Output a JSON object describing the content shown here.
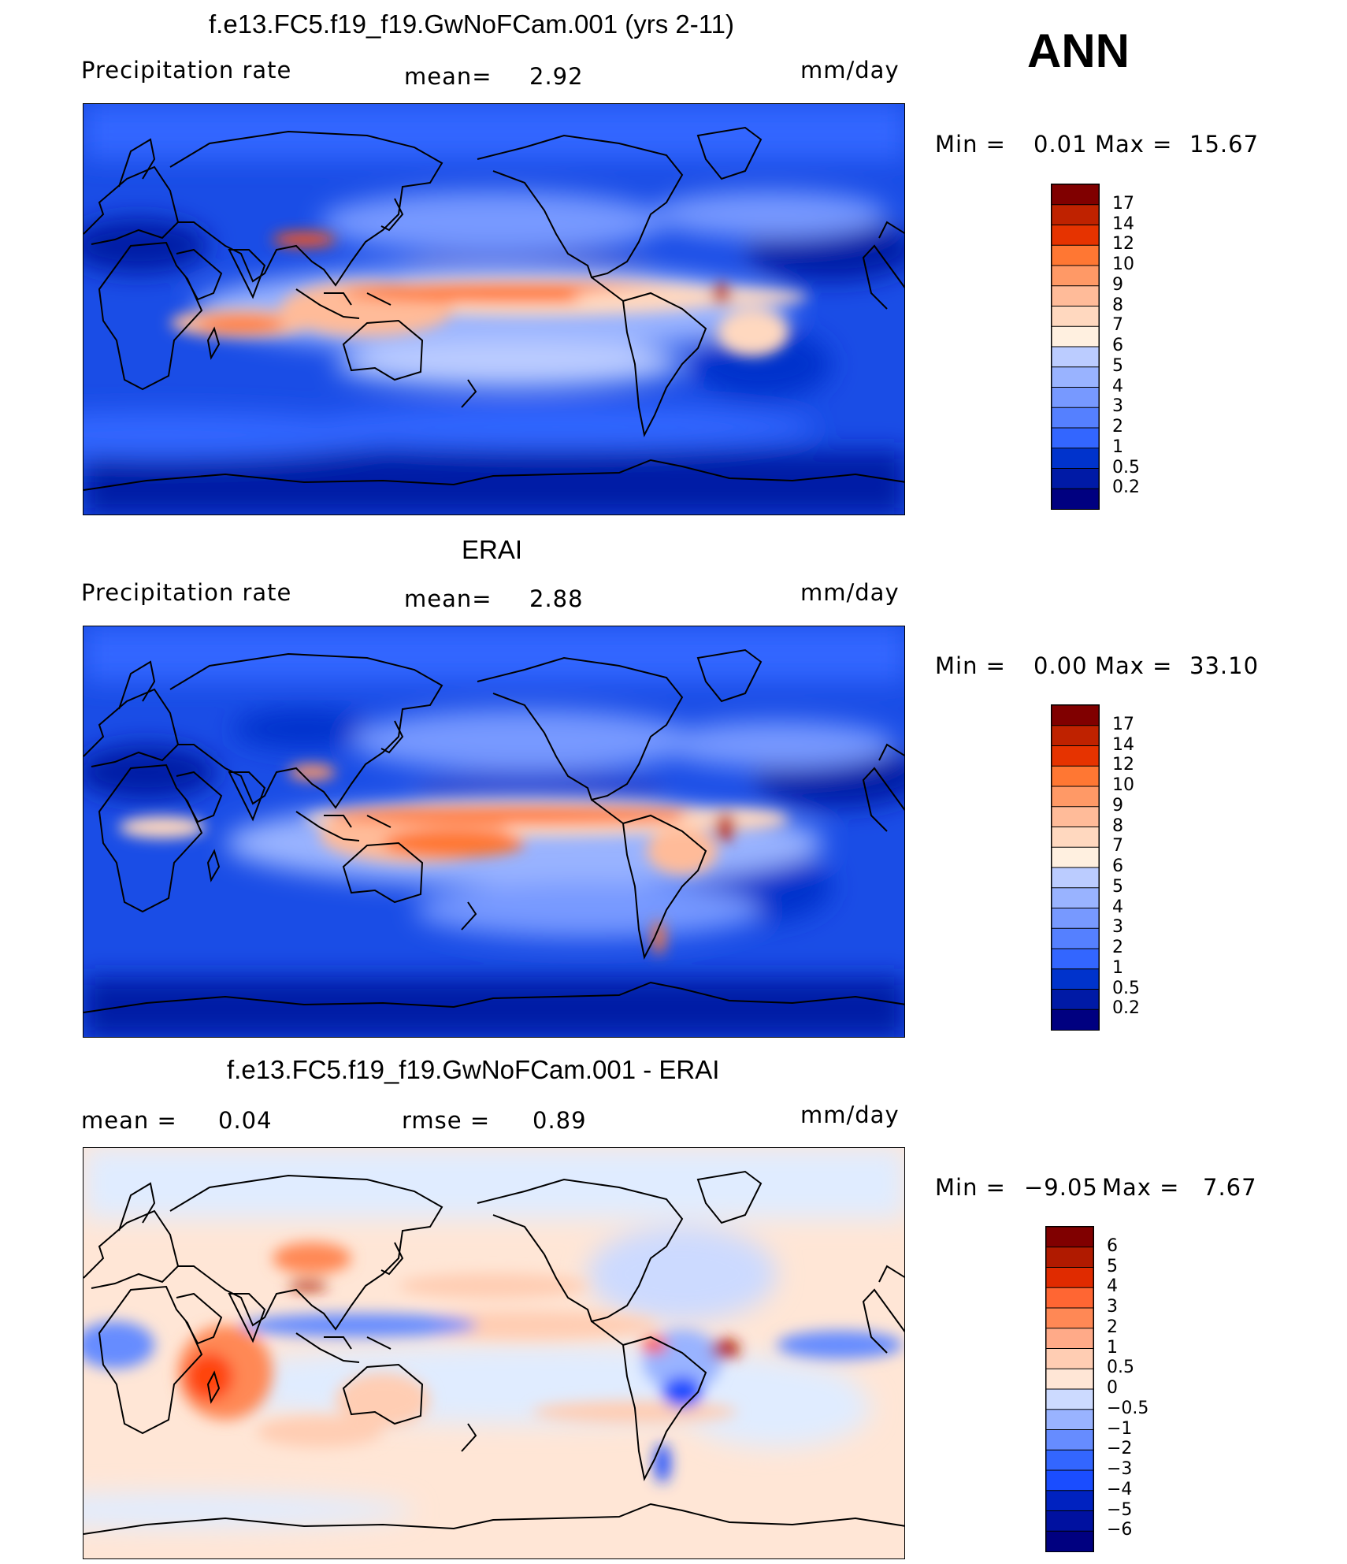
{
  "season": "ANN",
  "colors": {
    "abs_scale": [
      "#000080",
      "#001aa6",
      "#0033cc",
      "#1a4de6",
      "#3366ff",
      "#5580ff",
      "#7799ff",
      "#99b3ff",
      "#bbccff",
      "#dde6ff",
      "#fff0e0",
      "#ffd8bf",
      "#ffbb99",
      "#ff9966",
      "#ff7733",
      "#ff5511",
      "#e63300",
      "#bf2200",
      "#800000"
    ],
    "diff_scale": [
      "#000080",
      "#0011a0",
      "#0022c0",
      "#0033e0",
      "#1a4dff",
      "#3366ff",
      "#668cff",
      "#99b3ff",
      "#ccdaff",
      "#e0ecff",
      "#ffe6d6",
      "#ffcdb3",
      "#ffaa88",
      "#ff8855",
      "#ff6633",
      "#ff4411",
      "#e02b00",
      "#b01a00",
      "#800000"
    ]
  },
  "panels": [
    {
      "title": "f.e13.FC5.f19_f19.GwNoFCam.001 (yrs 2-11)",
      "left_label": "Precipitation rate",
      "mid_label": "mean=",
      "mid_value": "2.92",
      "units": "mm/day",
      "min_label": "Min =",
      "min_value": "0.01",
      "max_label": "Max =",
      "max_value": "15.67",
      "levels": [
        "17",
        "14",
        "12",
        "10",
        "9",
        "8",
        "7",
        "6",
        "5",
        "4",
        "3",
        "2",
        "1",
        "0.5",
        "0.2"
      ]
    },
    {
      "title": "ERAI",
      "left_label": "Precipitation rate",
      "mid_label": "mean=",
      "mid_value": "2.88",
      "units": "mm/day",
      "min_label": "Min =",
      "min_value": "0.00",
      "max_label": "Max =",
      "max_value": "33.10",
      "levels": [
        "17",
        "14",
        "12",
        "10",
        "9",
        "8",
        "7",
        "6",
        "5",
        "4",
        "3",
        "2",
        "1",
        "0.5",
        "0.2"
      ]
    },
    {
      "title": "f.e13.FC5.f19_f19.GwNoFCam.001 - ERAI",
      "left_label": "mean =",
      "left_value": "0.04",
      "mid_label": "rmse =",
      "mid_value": "0.89",
      "units": "mm/day",
      "min_label": "Min =",
      "min_value": "−9.05",
      "max_label": "Max =",
      "max_value": "7.67",
      "levels": [
        "6",
        "5",
        "4",
        "3",
        "2",
        "1",
        "0.5",
        "0",
        "−0.5",
        "−1",
        "−2",
        "−3",
        "−4",
        "−5",
        "−6"
      ]
    }
  ]
}
